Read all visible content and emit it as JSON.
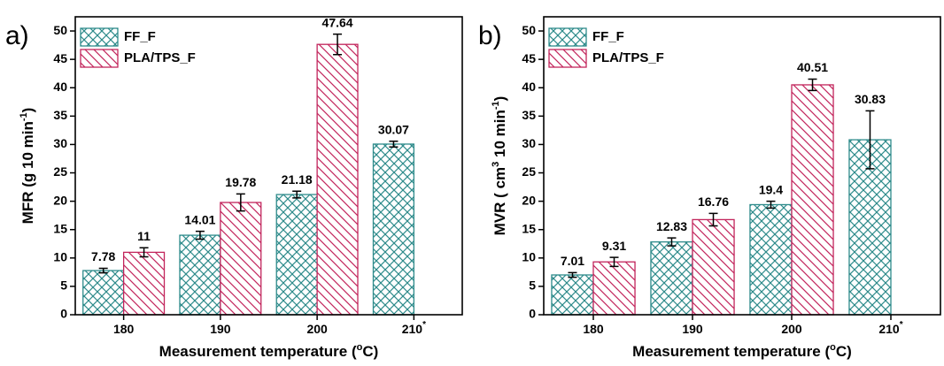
{
  "chart_data": [
    {
      "type": "bar",
      "panel_label": "a)",
      "ylabel_parts": [
        "MFR (g 10 min",
        "-1",
        ")"
      ],
      "xlabel_parts": [
        "Measurement temperature (",
        "o",
        "C)"
      ],
      "categories": [
        "180",
        "190",
        "200",
        "210"
      ],
      "category_notes": [
        null,
        null,
        null,
        "*"
      ],
      "series": [
        {
          "name": "FF_F",
          "color": "#2e8b8b",
          "hatch": "cross",
          "values": [
            7.78,
            14.01,
            21.18,
            30.07
          ],
          "errors": [
            0.4,
            0.7,
            0.6,
            0.5
          ]
        },
        {
          "name": "PLA/TPS_F",
          "color": "#c2255c",
          "hatch": "diagonal",
          "values": [
            11,
            19.78,
            47.64,
            null
          ],
          "errors": [
            0.8,
            1.5,
            1.8,
            null
          ]
        }
      ],
      "ylim": [
        0,
        52.5
      ],
      "yticks": [
        0,
        5,
        10,
        15,
        20,
        25,
        30,
        35,
        40,
        45,
        50
      ],
      "legend": "upper left"
    },
    {
      "type": "bar",
      "panel_label": "b)",
      "ylabel_parts": [
        "MVR ( cm",
        "3",
        " 10 min",
        "-1",
        ")"
      ],
      "xlabel_parts": [
        "Measurement temperature (",
        "o",
        "C)"
      ],
      "categories": [
        "180",
        "190",
        "200",
        "210"
      ],
      "category_notes": [
        null,
        null,
        null,
        "*"
      ],
      "series": [
        {
          "name": "FF_F",
          "color": "#2e8b8b",
          "hatch": "cross",
          "values": [
            7.01,
            12.83,
            19.4,
            30.83
          ],
          "errors": [
            0.4,
            0.7,
            0.6,
            5.1
          ]
        },
        {
          "name": "PLA/TPS_F",
          "color": "#c2255c",
          "hatch": "diagonal",
          "values": [
            9.31,
            16.76,
            40.51,
            null
          ],
          "errors": [
            0.8,
            1.1,
            1.0,
            null
          ]
        }
      ],
      "ylim": [
        0,
        52.5
      ],
      "yticks": [
        0,
        5,
        10,
        15,
        20,
        25,
        30,
        35,
        40,
        45,
        50
      ],
      "legend": "upper left"
    }
  ]
}
